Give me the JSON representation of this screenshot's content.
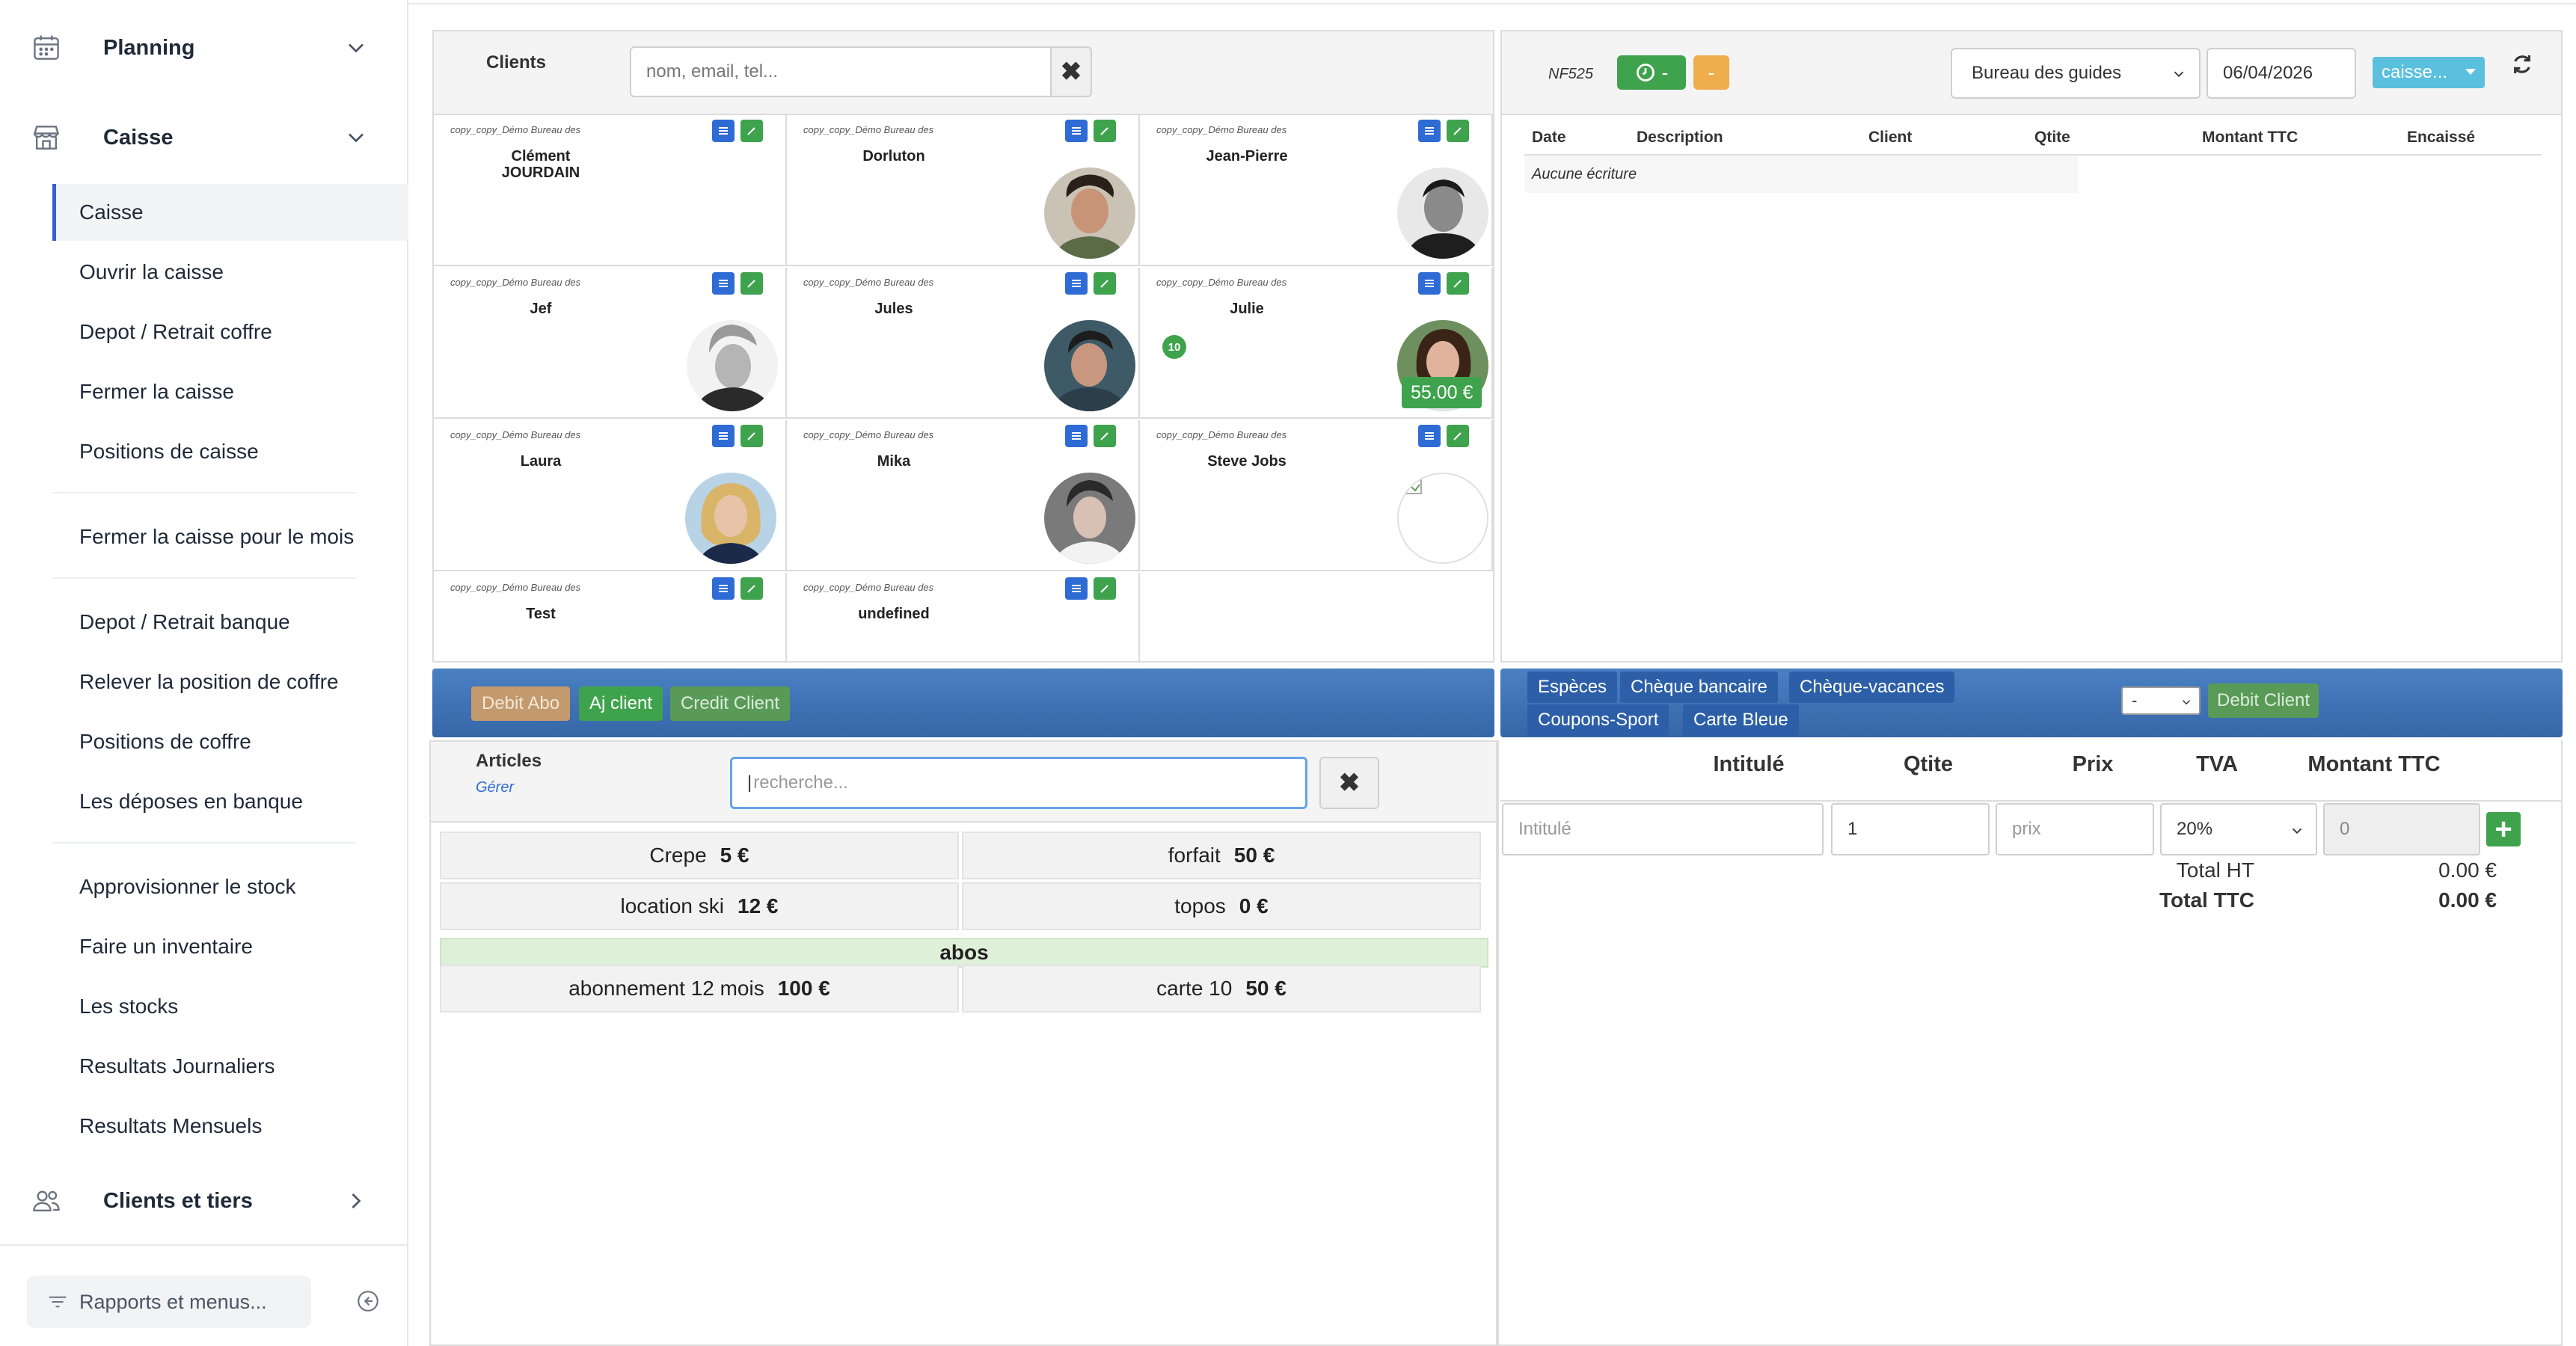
{
  "sidebar": {
    "groups": [
      {
        "label": "Planning",
        "icon": "calendar-icon"
      },
      {
        "label": "Caisse",
        "icon": "store-icon"
      },
      {
        "label": "Clients et tiers",
        "icon": "users-icon"
      }
    ],
    "items": [
      "Caisse",
      "Ouvrir la caisse",
      "Depot / Retrait coffre",
      "Fermer la caisse",
      "Positions de caisse",
      "Fermer la caisse pour le mois",
      "Depot / Retrait banque",
      "Relever la position de coffre",
      "Positions de coffre",
      "Les déposes en banque",
      "Approvisionner le stock",
      "Faire un inventaire",
      "Les stocks",
      "Resultats Journaliers",
      "Resultats Mensuels"
    ],
    "reports_label": "Rapports et menus..."
  },
  "clients": {
    "title": "Clients",
    "search_placeholder": "nom, email, tel...",
    "clear_symbol": "✖",
    "cards": [
      {
        "office": "copy_copy_Démo Bureau des",
        "name": "Clément JOURDAIN"
      },
      {
        "office": "copy_copy_Démo Bureau des",
        "name": "Dorluton"
      },
      {
        "office": "copy_copy_Démo Bureau des",
        "name": "Jean-Pierre"
      },
      {
        "office": "copy_copy_Démo Bureau des",
        "name": "Jef"
      },
      {
        "office": "copy_copy_Démo Bureau des",
        "name": "Jules"
      },
      {
        "office": "copy_copy_Démo Bureau des",
        "name": "Julie",
        "badge": "10",
        "balance": "55.00 €"
      },
      {
        "office": "copy_copy_Démo Bureau des",
        "name": "Laura"
      },
      {
        "office": "copy_copy_Démo Bureau des",
        "name": "Mika"
      },
      {
        "office": "copy_copy_Démo Bureau des",
        "name": "Steve Jobs"
      },
      {
        "office": "copy_copy_Démo Bureau des",
        "name": "Test"
      },
      {
        "office": "copy_copy_Démo Bureau des",
        "name": "undefined"
      }
    ]
  },
  "journal": {
    "code": "NF525",
    "green_pill": "-",
    "orange_pill": "-",
    "office_select": "Bureau des guides",
    "date": "06/04/2026",
    "register_dropdown": "caisse...",
    "columns": [
      "Date",
      "Description",
      "Client",
      "Qtite",
      "Montant TTC",
      "Encaissé"
    ],
    "empty_text": "Aucune écriture"
  },
  "client_actions": {
    "debit_abo": "Debit Abo",
    "add_client": "Aj client",
    "credit_client": "Credit Client"
  },
  "payment": {
    "methods": [
      "Espèces",
      "Chèque bancaire",
      "Chèque-vacances",
      "Coupons-Sport",
      "Carte Bleue"
    ],
    "select_value": "-",
    "debit_client": "Debit Client"
  },
  "articles": {
    "title": "Articles",
    "manage_link": "Gérer",
    "search_placeholder": "recherche...",
    "clear_symbol": "✖",
    "items": [
      {
        "name": "Crepe",
        "price": "5 €"
      },
      {
        "name": "forfait",
        "price": "50 €"
      },
      {
        "name": "location ski",
        "price": "12 €"
      },
      {
        "name": "topos",
        "price": "0 €"
      }
    ],
    "abos_header": "abos",
    "abos": [
      {
        "name": "abonnement 12 mois",
        "price": "100 €"
      },
      {
        "name": "carte 10",
        "price": "50 €"
      }
    ]
  },
  "ticket": {
    "columns": {
      "label": "Intitulé",
      "qty": "Qtite",
      "price": "Prix",
      "vat": "TVA",
      "total": "Montant TTC"
    },
    "label_placeholder": "Intitulé",
    "qty_value": "1",
    "price_placeholder": "prix",
    "vat_value": "20%",
    "total_value": "0",
    "add_symbol": "+",
    "total_ht_label": "Total HT",
    "total_ht_value": "0.00 €",
    "total_ttc_label": "Total TTC",
    "total_ttc_value": "0.00 €"
  },
  "colors": {
    "primary_blue": "#2e6bd4",
    "success_green": "#3fa34d",
    "warning_orange": "#f0ad4e",
    "info_blue": "#5bc0de",
    "bar_blue": "#3a6fb0"
  }
}
